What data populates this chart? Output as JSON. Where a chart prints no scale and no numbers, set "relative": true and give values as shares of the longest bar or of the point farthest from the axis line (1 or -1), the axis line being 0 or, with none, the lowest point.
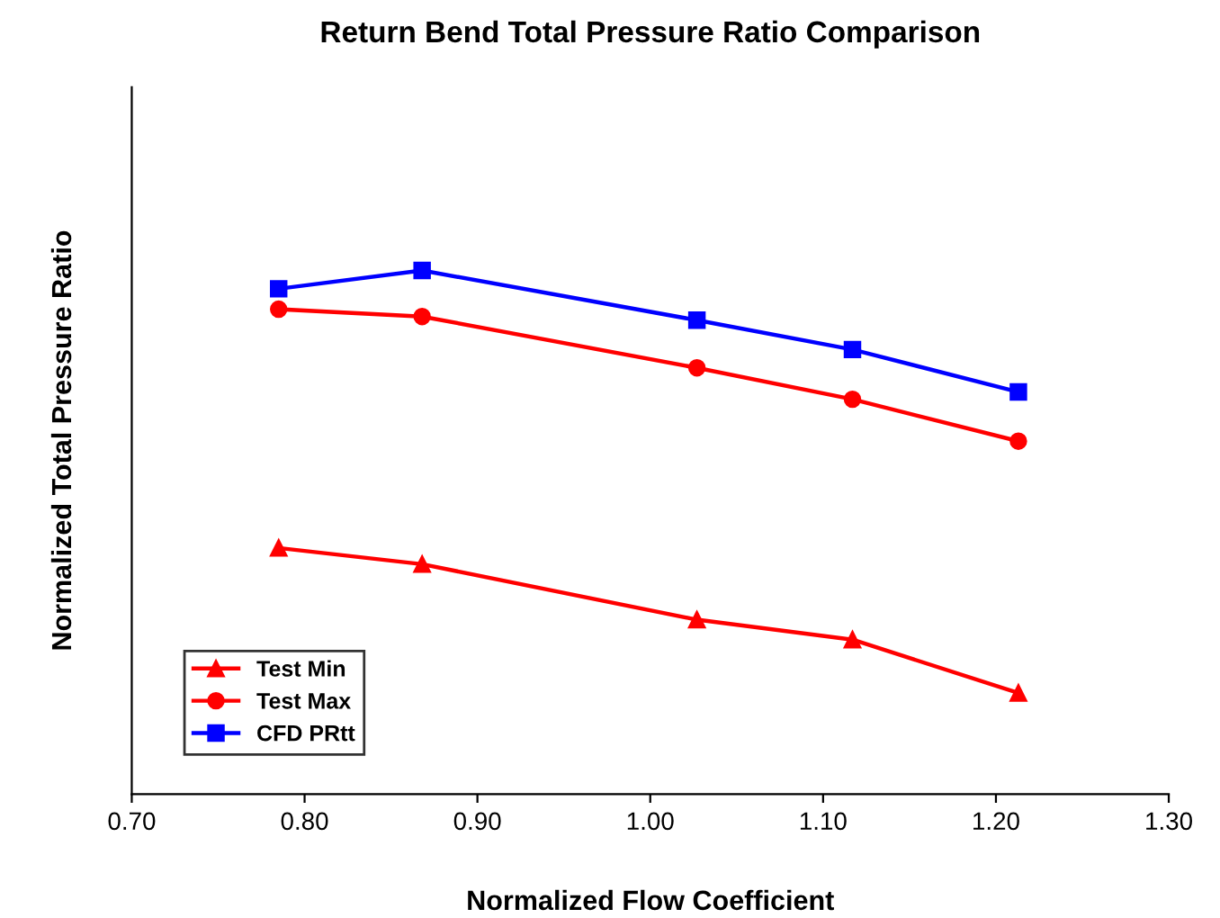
{
  "chart_data": {
    "type": "line",
    "title": "Return Bend Total Pressure Ratio Comparison",
    "xlabel": "Normalized Flow Coefficient",
    "ylabel": "Normalized Total Pressure Ratio",
    "relative": true,
    "x": [
      0.785,
      0.868,
      1.027,
      1.117,
      1.213
    ],
    "xlim": [
      0.7,
      1.3
    ],
    "xticks": [
      {
        "value": 0.7,
        "label": "0.70"
      },
      {
        "value": 0.8,
        "label": "0.80"
      },
      {
        "value": 0.9,
        "label": "0.90"
      },
      {
        "value": 1.0,
        "label": "1.00"
      },
      {
        "value": 1.1,
        "label": "1.10"
      },
      {
        "value": 1.2,
        "label": "1.20"
      },
      {
        "value": 1.3,
        "label": "1.30"
      }
    ],
    "tick_labels": "x",
    "grid": false,
    "legend": "bottom left",
    "series": [
      {
        "name": "Test Min",
        "color": "#ff0000",
        "marker": "triangle",
        "values": [
          0.47,
          0.439,
          0.333,
          0.295,
          0.193
        ]
      },
      {
        "name": "Test Max",
        "color": "#ff0000",
        "marker": "circle",
        "values": [
          0.926,
          0.912,
          0.814,
          0.754,
          0.674
        ]
      },
      {
        "name": "CFD PRtt",
        "color": "#0000ff",
        "marker": "square",
        "values": [
          0.965,
          1.0,
          0.905,
          0.849,
          0.768
        ]
      }
    ]
  }
}
